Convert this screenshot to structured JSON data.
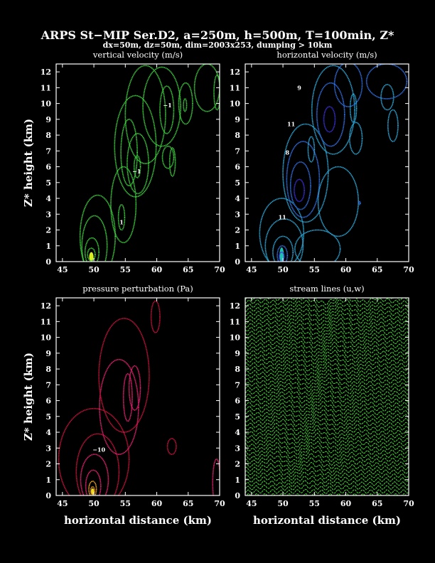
{
  "figure": {
    "title": "ARPS St−MIP Ser.D2, a=250m, h=500m, T=100min, Z*",
    "subtitle": "dx=50m, dz=50m, dim=2003x253, dumping > 10km"
  },
  "colors": {
    "background": "#000000",
    "vertical_velocity": "#3ccc3c",
    "horizontal_velocity_outer": "#2aa7d6",
    "horizontal_velocity_mid": "#2f6fe0",
    "horizontal_velocity_inner": "#3a2fd6",
    "pressure_outer": "#c4123a",
    "pressure_inner": "#e0206e",
    "streamlines": "#3ecc2e"
  },
  "chart_data": [
    {
      "type": "contour",
      "title": "vertical velocity (m/s)",
      "xlabel": "",
      "ylabel": "Z* height (km)",
      "xlim": [
        44,
        70
      ],
      "ylim": [
        0,
        12.5
      ],
      "xticks": [
        "45",
        "50",
        "55",
        "60",
        "65",
        "70"
      ],
      "yticks": [
        "0",
        "1",
        "2",
        "3",
        "4",
        "5",
        "6",
        "7",
        "8",
        "9",
        "10",
        "11",
        "12"
      ],
      "contour_labels": [
        {
          "text": "1",
          "x": 54.4,
          "y": 2.5
        },
        {
          "text": "−1",
          "x": 56.8,
          "y": 5.7
        },
        {
          "text": "−1",
          "x": 61.7,
          "y": 9.9
        }
      ],
      "contours": [
        {
          "cx": 49.6,
          "cy": 0.45,
          "rx": 0.6,
          "ry": 0.4
        },
        {
          "cx": 49.7,
          "cy": 0.6,
          "rx": 1.1,
          "ry": 0.9
        },
        {
          "cx": 50.1,
          "cy": 1.0,
          "rx": 2.0,
          "ry": 1.9
        },
        {
          "cx": 50.6,
          "cy": 1.6,
          "rx": 2.8,
          "ry": 2.6
        },
        {
          "cx": 54.4,
          "cy": 2.8,
          "rx": 0.5,
          "ry": 0.8
        },
        {
          "cx": 54.7,
          "cy": 3.6,
          "rx": 2.0,
          "ry": 2.4
        },
        {
          "cx": 56.9,
          "cy": 6.0,
          "rx": 0.5,
          "ry": 0.7
        },
        {
          "cx": 57.0,
          "cy": 6.2,
          "rx": 1.7,
          "ry": 1.9
        },
        {
          "cx": 55.6,
          "cy": 6.9,
          "rx": 1.3,
          "ry": 2.1
        },
        {
          "cx": 56.6,
          "cy": 7.3,
          "rx": 3.3,
          "ry": 3.2
        },
        {
          "cx": 58.2,
          "cy": 9.3,
          "rx": 3.2,
          "ry": 3.1
        },
        {
          "cx": 60.8,
          "cy": 9.8,
          "rx": 3.0,
          "ry": 2.5
        },
        {
          "cx": 61.6,
          "cy": 9.6,
          "rx": 1.1,
          "ry": 1.5
        },
        {
          "cx": 64.6,
          "cy": 10.0,
          "rx": 1.1,
          "ry": 1.3
        },
        {
          "cx": 64.5,
          "cy": 9.9,
          "rx": 0.25,
          "ry": 0.4
        },
        {
          "cx": 68.0,
          "cy": 11.0,
          "rx": 2.0,
          "ry": 1.5
        },
        {
          "cx": 69.6,
          "cy": 10.7,
          "rx": 0.5,
          "ry": 1.1
        },
        {
          "cx": 61.8,
          "cy": 6.6,
          "rx": 0.9,
          "ry": 0.7
        },
        {
          "cx": 62.5,
          "cy": 6.3,
          "rx": 0.45,
          "ry": 0.9
        }
      ]
    },
    {
      "type": "contour",
      "title": "horizontal velocity (m/s)",
      "xlabel": "",
      "ylabel": "",
      "xlim": [
        44,
        70
      ],
      "ylim": [
        0,
        12.5
      ],
      "xticks": [
        "45",
        "50",
        "55",
        "60",
        "65",
        "70"
      ],
      "yticks": [
        "0",
        "1",
        "2",
        "3",
        "4",
        "5",
        "6",
        "7",
        "8",
        "9",
        "10",
        "11",
        "12"
      ],
      "contour_labels": [
        {
          "text": "11",
          "x": 49.9,
          "y": 2.8
        },
        {
          "text": "8",
          "x": 50.7,
          "y": 6.9
        },
        {
          "text": "11",
          "x": 51.3,
          "y": 8.7
        },
        {
          "text": "9",
          "x": 52.6,
          "y": 11.0
        }
      ],
      "contours": [
        {
          "cx": 49.8,
          "cy": 0.3,
          "rx": 0.4,
          "ry": 0.3,
          "level": "inner"
        },
        {
          "cx": 49.9,
          "cy": 0.4,
          "rx": 0.8,
          "ry": 0.6,
          "level": "mid"
        },
        {
          "cx": 50.0,
          "cy": 0.6,
          "rx": 1.6,
          "ry": 1.0,
          "level": "outer"
        },
        {
          "cx": 50.2,
          "cy": 1.0,
          "rx": 3.0,
          "ry": 1.7,
          "level": "outer"
        },
        {
          "cx": 49.8,
          "cy": 1.8,
          "rx": 3.5,
          "ry": 2.2,
          "level": "outer"
        },
        {
          "cx": 52.6,
          "cy": 4.5,
          "rx": 0.8,
          "ry": 0.7,
          "level": "inner"
        },
        {
          "cx": 52.8,
          "cy": 4.8,
          "rx": 1.6,
          "ry": 1.5,
          "level": "mid"
        },
        {
          "cx": 53.2,
          "cy": 5.2,
          "rx": 2.6,
          "ry": 2.4,
          "level": "mid"
        },
        {
          "cx": 53.6,
          "cy": 5.6,
          "rx": 3.6,
          "ry": 3.1,
          "level": "outer"
        },
        {
          "cx": 57.4,
          "cy": 9.0,
          "rx": 0.9,
          "ry": 0.8,
          "level": "inner"
        },
        {
          "cx": 57.6,
          "cy": 9.3,
          "rx": 2.2,
          "ry": 2.0,
          "level": "mid"
        },
        {
          "cx": 58.0,
          "cy": 9.6,
          "rx": 3.4,
          "ry": 2.8,
          "level": "outer"
        },
        {
          "cx": 60.4,
          "cy": 11.2,
          "rx": 2.2,
          "ry": 1.4,
          "level": "mid"
        },
        {
          "cx": 66.5,
          "cy": 11.4,
          "rx": 3.2,
          "ry": 1.1,
          "level": "mid"
        },
        {
          "cx": 66.6,
          "cy": 10.4,
          "rx": 1.0,
          "ry": 0.8,
          "level": "outer"
        },
        {
          "cx": 54.5,
          "cy": 7.1,
          "rx": 0.5,
          "ry": 0.8,
          "level": "outer"
        },
        {
          "cx": 61.2,
          "cy": 9.7,
          "rx": 0.5,
          "ry": 0.9,
          "level": "outer"
        },
        {
          "cx": 58.8,
          "cy": 3.8,
          "rx": 3.2,
          "ry": 2.2,
          "level": "outer"
        },
        {
          "cx": 55.5,
          "cy": 0.8,
          "rx": 3.6,
          "ry": 1.2,
          "level": "outer"
        },
        {
          "cx": 61.6,
          "cy": 7.8,
          "rx": 1.0,
          "ry": 1.0,
          "level": "outer"
        },
        {
          "cx": 67.5,
          "cy": 8.6,
          "rx": 0.8,
          "ry": 1.0,
          "level": "outer"
        },
        {
          "cx": 62.2,
          "cy": 3.7,
          "rx": 0.1,
          "ry": 0.1,
          "level": "mid"
        }
      ]
    },
    {
      "type": "contour",
      "title": "pressure perturbation (Pa)",
      "xlabel": "horizontal distance (km)",
      "ylabel": "Z* height (km)",
      "xlim": [
        44,
        70
      ],
      "ylim": [
        0,
        12.5
      ],
      "xticks": [
        "45",
        "50",
        "55",
        "60",
        "65",
        "70"
      ],
      "yticks": [
        "0",
        "1",
        "2",
        "3",
        "4",
        "5",
        "6",
        "7",
        "8",
        "9",
        "10",
        "11",
        "12"
      ],
      "contour_labels": [
        {
          "text": "−10",
          "x": 50.8,
          "y": 2.9
        }
      ],
      "contours": [
        {
          "cx": 49.8,
          "cy": 0.3,
          "rx": 0.3,
          "ry": 0.25,
          "level": "core"
        },
        {
          "cx": 49.8,
          "cy": 0.4,
          "rx": 0.6,
          "ry": 0.5,
          "level": "core"
        },
        {
          "cx": 49.9,
          "cy": 0.6,
          "rx": 1.2,
          "ry": 1.0,
          "level": "inner"
        },
        {
          "cx": 50.1,
          "cy": 1.0,
          "rx": 2.2,
          "ry": 1.6,
          "level": "inner"
        },
        {
          "cx": 50.6,
          "cy": 1.5,
          "rx": 3.4,
          "ry": 2.4,
          "level": "outer"
        },
        {
          "cx": 50.0,
          "cy": 2.3,
          "rx": 5.6,
          "ry": 3.2,
          "level": "outer"
        },
        {
          "cx": 54.0,
          "cy": 5.6,
          "rx": 3.1,
          "ry": 3.0,
          "level": "inner"
        },
        {
          "cx": 55.4,
          "cy": 6.2,
          "rx": 0.7,
          "ry": 1.5,
          "level": "inner"
        },
        {
          "cx": 56.5,
          "cy": 6.8,
          "rx": 0.9,
          "ry": 1.4,
          "level": "inner"
        },
        {
          "cx": 54.8,
          "cy": 7.6,
          "rx": 4.0,
          "ry": 3.6,
          "level": "outer"
        },
        {
          "cx": 59.8,
          "cy": 11.3,
          "rx": 0.7,
          "ry": 1.0,
          "level": "outer"
        },
        {
          "cx": 62.4,
          "cy": 3.1,
          "rx": 0.7,
          "ry": 0.5,
          "level": "outer"
        },
        {
          "cx": 69.5,
          "cy": 0.8,
          "rx": 0.6,
          "ry": 1.5,
          "level": "inner"
        }
      ]
    },
    {
      "type": "streamlines",
      "title": "stream lines (u,w)",
      "xlabel": "horizontal distance (km)",
      "ylabel": "",
      "xlim": [
        44,
        70
      ],
      "ylim": [
        0,
        12.5
      ],
      "xticks": [
        "45",
        "50",
        "55",
        "60",
        "65",
        "70"
      ],
      "yticks": [
        "0",
        "1",
        "2",
        "3",
        "4",
        "5",
        "6",
        "7",
        "8",
        "9",
        "10",
        "11",
        "12"
      ],
      "line_spacing_km": 0.25,
      "wave_amplitude_km": 0.35,
      "wave_length_km": 6.5,
      "wave_tilt_km_per_km": 0.5
    }
  ]
}
